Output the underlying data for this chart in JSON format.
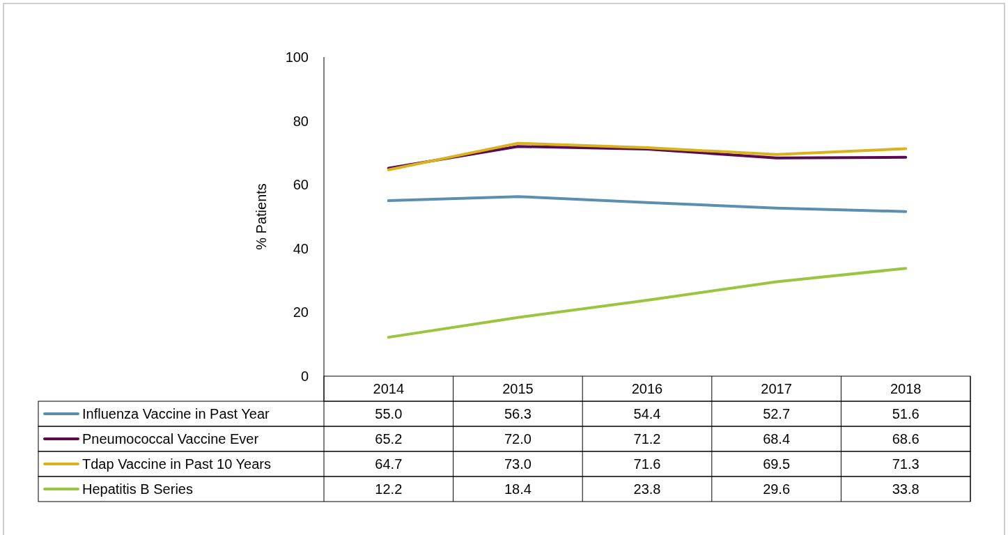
{
  "chart_data": {
    "type": "line",
    "ylabel": "% Patients",
    "categories": [
      "2014",
      "2015",
      "2016",
      "2017",
      "2018"
    ],
    "ylim": [
      0,
      100
    ],
    "yticks": [
      0,
      20,
      40,
      60,
      80,
      100
    ],
    "grid": false,
    "legend": "bottom",
    "marker": "none",
    "series": [
      {
        "name": "Influenza Vaccine in Past Year",
        "color": "#5b8fb0",
        "values": [
          55.0,
          56.3,
          54.4,
          52.7,
          51.6
        ],
        "value_labels": [
          "55.0",
          "56.3",
          "54.4",
          "52.7",
          "51.6"
        ]
      },
      {
        "name": "Pneumococcal Vaccine Ever",
        "color": "#5a0a50",
        "values": [
          65.2,
          72.0,
          71.2,
          68.4,
          68.6
        ],
        "value_labels": [
          "65.2",
          "72.0",
          "71.2",
          "68.4",
          "68.6"
        ]
      },
      {
        "name": "Tdap Vaccine in Past 10 Years",
        "color": "#d9b21e",
        "values": [
          64.7,
          73.0,
          71.6,
          69.5,
          71.3
        ],
        "value_labels": [
          "64.7",
          "73.0",
          "71.6",
          "69.5",
          "71.3"
        ]
      },
      {
        "name": "Hepatitis B Series",
        "color": "#9bc43f",
        "values": [
          12.2,
          18.4,
          23.8,
          29.6,
          33.8
        ],
        "value_labels": [
          "12.2",
          "18.4",
          "23.8",
          "29.6",
          "33.8"
        ]
      }
    ]
  }
}
